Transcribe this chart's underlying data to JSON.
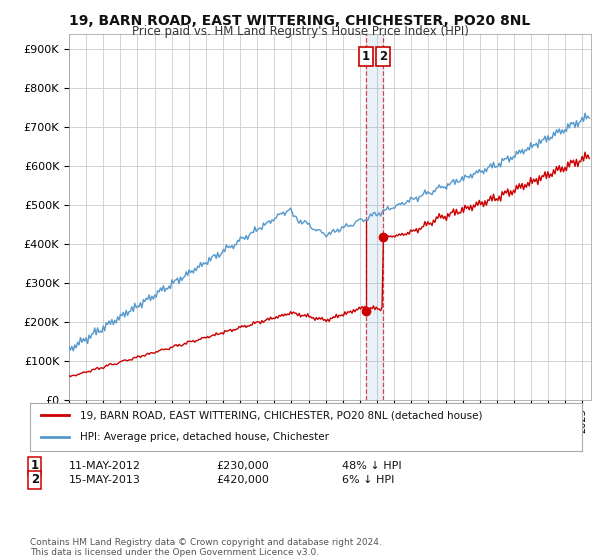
{
  "title": "19, BARN ROAD, EAST WITTERING, CHICHESTER, PO20 8NL",
  "subtitle": "Price paid vs. HM Land Registry's House Price Index (HPI)",
  "ylabel_ticks": [
    "£0",
    "£100K",
    "£200K",
    "£300K",
    "£400K",
    "£500K",
    "£600K",
    "£700K",
    "£800K",
    "£900K"
  ],
  "ytick_values": [
    0,
    100000,
    200000,
    300000,
    400000,
    500000,
    600000,
    700000,
    800000,
    900000
  ],
  "ylim": [
    0,
    940000
  ],
  "xlim_start": 1995.0,
  "xlim_end": 2025.5,
  "legend_label_red": "19, BARN ROAD, EAST WITTERING, CHICHESTER, PO20 8NL (detached house)",
  "legend_label_blue": "HPI: Average price, detached house, Chichester",
  "sale1_date": "11-MAY-2012",
  "sale1_price": "£230,000",
  "sale1_hpi": "48% ↓ HPI",
  "sale1_year": 2012.36,
  "sale1_value": 230000,
  "sale2_date": "15-MAY-2013",
  "sale2_price": "£420,000",
  "sale2_hpi": "6% ↓ HPI",
  "sale2_year": 2013.37,
  "sale2_value": 420000,
  "footnote": "Contains HM Land Registry data © Crown copyright and database right 2024.\nThis data is licensed under the Open Government Licence v3.0.",
  "color_red": "#cc0000",
  "color_blue": "#5599cc",
  "background_color": "#ffffff",
  "grid_color": "#cccccc"
}
